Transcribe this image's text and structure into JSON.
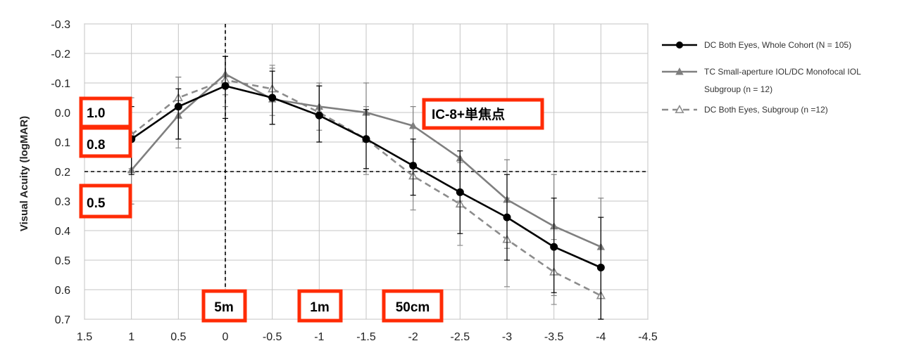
{
  "chart_data": {
    "type": "line",
    "xlabel": "",
    "ylabel": "Visual Acuity (logMAR)",
    "xlim": [
      1.5,
      -4.5
    ],
    "ylim": [
      -0.3,
      0.7
    ],
    "y_reversed": true,
    "x_ticks": [
      "1.5",
      "1",
      "0.5",
      "0",
      "-0.5",
      "-1",
      "-1.5",
      "-2",
      "-2.5",
      "-3",
      "-3.5",
      "-4",
      "-4.5"
    ],
    "x_tick_values": [
      1.5,
      1,
      0.5,
      0,
      -0.5,
      -1,
      -1.5,
      -2,
      -2.5,
      -3,
      -3.5,
      -4,
      -4.5
    ],
    "y_ticks": [
      "-0.3",
      "-0.2",
      "-0.1",
      "0.0",
      "0.1",
      "0.2",
      "0.3",
      "0.4",
      "0.5",
      "0.6",
      "0.7"
    ],
    "y_tick_values": [
      -0.3,
      -0.2,
      -0.1,
      0.0,
      0.1,
      0.2,
      0.3,
      0.4,
      0.5,
      0.6,
      0.7
    ],
    "grid": true,
    "legend_position": "right",
    "reference_lines": [
      {
        "orientation": "horizontal",
        "value": 0.2,
        "style": "dashed",
        "color": "#000000"
      },
      {
        "orientation": "vertical",
        "value": 0,
        "style": "dashed",
        "color": "#000000"
      }
    ],
    "x": [
      1,
      0.5,
      0,
      -0.5,
      -1,
      -1.5,
      -2,
      -2.5,
      -3,
      -3.5,
      -4
    ],
    "series": [
      {
        "name": "DC Both Eyes, Whole Cohort (N = 105)",
        "color": "#000000",
        "line": "solid",
        "marker": "circle-filled",
        "values": [
          0.09,
          -0.02,
          -0.09,
          -0.05,
          0.01,
          0.09,
          0.18,
          0.27,
          0.355,
          0.455,
          0.525
        ],
        "error_low": [
          -0.02,
          -0.08,
          -0.19,
          -0.14,
          -0.09,
          -0.01,
          0.09,
          0.13,
          0.21,
          0.29,
          0.355
        ],
        "error_high": [
          0.21,
          0.09,
          0.02,
          0.04,
          0.1,
          0.19,
          0.28,
          0.41,
          0.5,
          0.61,
          0.7
        ]
      },
      {
        "name": "TC Small-aperture IOL/DC Monofocal IOL Subgroup (n = 12)",
        "color": "#7f7f7f",
        "line": "solid",
        "marker": "triangle-filled",
        "values": [
          0.195,
          0.01,
          -0.13,
          -0.045,
          -0.02,
          0.0,
          0.045,
          0.155,
          0.295,
          0.385,
          0.455
        ],
        "error_low": [
          0.07,
          -0.12,
          -0.19,
          -0.15,
          -0.1,
          -0.1,
          -0.02,
          0.04,
          0.16,
          0.21,
          0.29
        ],
        "error_high": [
          0.31,
          0.09,
          -0.06,
          0.04,
          0.06,
          0.1,
          0.17,
          0.3,
          0.46,
          0.62,
          0.7
        ]
      },
      {
        "name": "DC Both Eyes, Subgroup (n =12)",
        "color": "#8c8c8c",
        "line": "dashed",
        "marker": "triangle-open",
        "values": [
          0.075,
          -0.05,
          -0.11,
          -0.08,
          0.0,
          0.09,
          0.215,
          0.31,
          0.43,
          0.54,
          0.62
        ],
        "error_low": [
          -0.05,
          -0.12,
          -0.19,
          -0.16,
          -0.09,
          -0.02,
          0.1,
          0.17,
          0.29,
          0.43,
          0.53
        ],
        "error_high": [
          0.19,
          0.12,
          -0.02,
          0.01,
          0.1,
          0.21,
          0.33,
          0.45,
          0.59,
          0.65,
          0.7
        ]
      }
    ],
    "annotations": [
      {
        "text": "1.0",
        "anchor_y": 0.0
      },
      {
        "text": "0.8",
        "anchor_y": 0.1
      },
      {
        "text": "0.5",
        "anchor_y": 0.3
      },
      {
        "text": "IC-8+単焦点"
      },
      {
        "text": "5m",
        "anchor_x": 0
      },
      {
        "text": "1m",
        "anchor_x": -1
      },
      {
        "text": "50cm",
        "anchor_x": -2
      }
    ]
  },
  "annotation_box_color": "#ff2b06"
}
